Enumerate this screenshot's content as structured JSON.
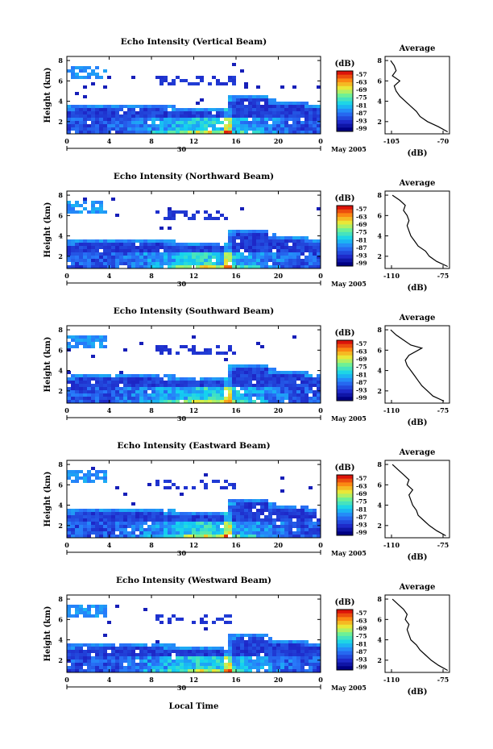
{
  "common": {
    "x_label": "Local Time",
    "date_label": "May 2005",
    "day_label": "30",
    "height_label": "Height (km)",
    "unit_label": "(dB)",
    "avg_title": "Average",
    "avg_xlabel": "(dB)"
  },
  "chart_data": [
    {
      "type": "heatmap",
      "title": "Echo Intensity (Vertical Beam)",
      "ylabel": "Height (km)",
      "x_ticks": [
        "0",
        "4",
        "8",
        "12",
        "16",
        "20",
        "0"
      ],
      "y_ticks": [
        "2",
        "4",
        "6",
        "8"
      ],
      "xlim": [
        0,
        24
      ],
      "ylim": [
        0.8,
        8.4
      ],
      "colorbar": {
        "label": "(dB)",
        "ticks": [
          "-57",
          "-63",
          "-69",
          "-75",
          "-81",
          "-87",
          "-93",
          "-99"
        ]
      },
      "average_profile": {
        "title": "Average",
        "xlabel": "(dB)",
        "xlim": [
          -105,
          -70
        ],
        "x_ticks": [
          "-105",
          "-70"
        ],
        "y_ticks": [
          "2",
          "4",
          "6",
          "8"
        ],
        "points": [
          [
            -71,
            1.0
          ],
          [
            -76,
            1.5
          ],
          [
            -82,
            2.0
          ],
          [
            -86,
            2.5
          ],
          [
            -88,
            3.0
          ],
          [
            -91,
            3.5
          ],
          [
            -94,
            4.0
          ],
          [
            -97,
            4.5
          ],
          [
            -99,
            5.0
          ],
          [
            -100,
            5.5
          ],
          [
            -97,
            6.0
          ],
          [
            -101,
            6.5
          ],
          [
            -99,
            7.0
          ],
          [
            -100,
            7.5
          ],
          [
            -102,
            8.0
          ]
        ]
      }
    },
    {
      "type": "heatmap",
      "title": "Echo Intensity (Northward Beam)",
      "ylabel": "Height (km)",
      "x_ticks": [
        "0",
        "4",
        "8",
        "12",
        "16",
        "20",
        "0"
      ],
      "y_ticks": [
        "2",
        "4",
        "6",
        "8"
      ],
      "xlim": [
        0,
        24
      ],
      "ylim": [
        0.8,
        8.4
      ],
      "colorbar": {
        "label": "(dB)",
        "ticks": [
          "-57",
          "-63",
          "-69",
          "-75",
          "-81",
          "-87",
          "-93",
          "-99"
        ]
      },
      "average_profile": {
        "title": "Average",
        "xlabel": "(dB)",
        "xlim": [
          -110,
          -75
        ],
        "x_ticks": [
          "-110",
          "-75"
        ],
        "y_ticks": [
          "2",
          "4",
          "6",
          "8"
        ],
        "points": [
          [
            -76,
            1.0
          ],
          [
            -82,
            1.5
          ],
          [
            -86,
            2.0
          ],
          [
            -88,
            2.5
          ],
          [
            -92,
            3.0
          ],
          [
            -94,
            3.5
          ],
          [
            -96,
            4.0
          ],
          [
            -97,
            4.5
          ],
          [
            -98,
            5.0
          ],
          [
            -97,
            5.5
          ],
          [
            -98,
            6.0
          ],
          [
            -100,
            6.5
          ],
          [
            -99,
            7.0
          ],
          [
            -102,
            7.5
          ],
          [
            -106,
            8.0
          ]
        ]
      }
    },
    {
      "type": "heatmap",
      "title": "Echo Intensity (Southward Beam)",
      "ylabel": "Height (km)",
      "x_ticks": [
        "0",
        "4",
        "8",
        "12",
        "16",
        "20",
        "0"
      ],
      "y_ticks": [
        "2",
        "4",
        "6",
        "8"
      ],
      "xlim": [
        0,
        24
      ],
      "ylim": [
        0.8,
        8.4
      ],
      "colorbar": {
        "label": "(dB)",
        "ticks": [
          "-57",
          "-63",
          "-69",
          "-75",
          "-81",
          "-87",
          "-93",
          "-99"
        ]
      },
      "average_profile": {
        "title": "Average",
        "xlabel": "(dB)",
        "xlim": [
          -110,
          -75
        ],
        "x_ticks": [
          "-110",
          "-75"
        ],
        "y_ticks": [
          "2",
          "4",
          "6",
          "8"
        ],
        "points": [
          [
            -78,
            1.0
          ],
          [
            -84,
            1.5
          ],
          [
            -87,
            2.0
          ],
          [
            -90,
            2.5
          ],
          [
            -92,
            3.0
          ],
          [
            -94,
            3.5
          ],
          [
            -96,
            4.0
          ],
          [
            -98,
            4.5
          ],
          [
            -99,
            5.0
          ],
          [
            -97,
            5.5
          ],
          [
            -90,
            6.2
          ],
          [
            -96,
            6.5
          ],
          [
            -100,
            7.0
          ],
          [
            -104,
            7.5
          ],
          [
            -107,
            8.0
          ]
        ]
      }
    },
    {
      "type": "heatmap",
      "title": "Echo Intensity (Eastward Beam)",
      "ylabel": "Height (km)",
      "x_ticks": [
        "0",
        "4",
        "8",
        "12",
        "16",
        "20",
        "0"
      ],
      "y_ticks": [
        "2",
        "4",
        "6",
        "8"
      ],
      "xlim": [
        0,
        24
      ],
      "ylim": [
        0.8,
        8.4
      ],
      "colorbar": {
        "label": "(dB)",
        "ticks": [
          "-57",
          "-63",
          "-69",
          "-75",
          "-81",
          "-87",
          "-93",
          "-99"
        ]
      },
      "average_profile": {
        "title": "Average",
        "xlabel": "(dB)",
        "xlim": [
          -110,
          -75
        ],
        "x_ticks": [
          "-110",
          "-75"
        ],
        "y_ticks": [
          "2",
          "4",
          "6",
          "8"
        ],
        "points": [
          [
            -77,
            1.0
          ],
          [
            -82,
            1.5
          ],
          [
            -86,
            2.0
          ],
          [
            -89,
            2.5
          ],
          [
            -92,
            3.0
          ],
          [
            -93,
            3.5
          ],
          [
            -95,
            4.0
          ],
          [
            -96,
            4.5
          ],
          [
            -97,
            5.0
          ],
          [
            -95,
            5.5
          ],
          [
            -98,
            6.0
          ],
          [
            -97,
            6.5
          ],
          [
            -100,
            7.0
          ],
          [
            -103,
            7.5
          ],
          [
            -106,
            8.0
          ]
        ]
      }
    },
    {
      "type": "heatmap",
      "title": "Echo Intensity (Westward Beam)",
      "ylabel": "Height (km)",
      "x_ticks": [
        "0",
        "4",
        "8",
        "12",
        "16",
        "20",
        "0"
      ],
      "y_ticks": [
        "2",
        "4",
        "6",
        "8"
      ],
      "xlim": [
        0,
        24
      ],
      "ylim": [
        0.8,
        8.4
      ],
      "colorbar": {
        "label": "(dB)",
        "ticks": [
          "-57",
          "-63",
          "-69",
          "-75",
          "-81",
          "-87",
          "-93",
          "-99"
        ]
      },
      "average_profile": {
        "title": "Average",
        "xlabel": "(dB)",
        "xlim": [
          -110,
          -75
        ],
        "x_ticks": [
          "-110",
          "-75"
        ],
        "y_ticks": [
          "2",
          "4",
          "6",
          "8"
        ],
        "points": [
          [
            -76,
            1.0
          ],
          [
            -81,
            1.5
          ],
          [
            -85,
            2.0
          ],
          [
            -88,
            2.5
          ],
          [
            -91,
            3.0
          ],
          [
            -93,
            3.5
          ],
          [
            -96,
            4.0
          ],
          [
            -97,
            4.5
          ],
          [
            -98,
            5.0
          ],
          [
            -97,
            5.5
          ],
          [
            -99,
            6.0
          ],
          [
            -98,
            6.5
          ],
          [
            -100,
            7.0
          ],
          [
            -103,
            7.5
          ],
          [
            -106,
            8.0
          ]
        ]
      }
    }
  ]
}
